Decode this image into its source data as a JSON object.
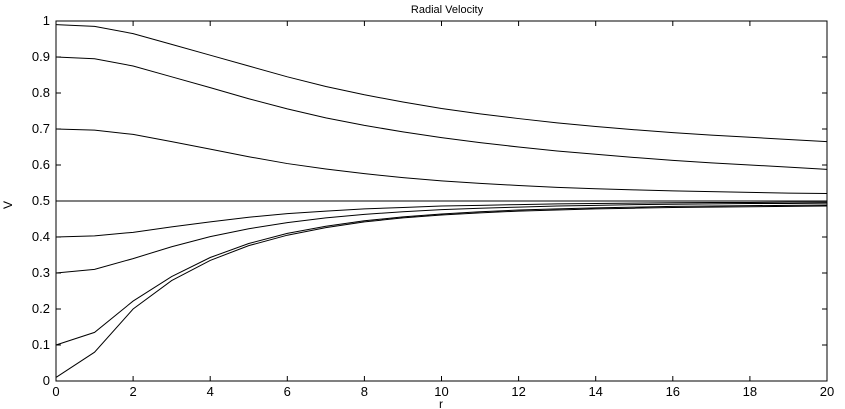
{
  "chart_data": {
    "type": "line",
    "title": "Radial Velocity",
    "xlabel": "r",
    "ylabel": "V",
    "xlim": [
      0,
      20
    ],
    "ylim": [
      0,
      1
    ],
    "xticks": [
      "0",
      "2",
      "4",
      "6",
      "8",
      "10",
      "12",
      "14",
      "16",
      "18",
      "20"
    ],
    "yticks": [
      "0",
      "0.1",
      "0.2",
      "0.3",
      "0.4",
      "0.5",
      "0.6",
      "0.7",
      "0.8",
      "0.9",
      "1"
    ],
    "grid": false,
    "line_color": "#000000",
    "x": [
      0,
      1,
      2,
      3,
      4,
      5,
      6,
      7,
      8,
      9,
      10,
      11,
      12,
      13,
      14,
      15,
      16,
      17,
      18,
      19,
      20
    ],
    "series": [
      {
        "values": [
          0.99,
          0.985,
          0.965,
          0.935,
          0.905,
          0.875,
          0.845,
          0.818,
          0.795,
          0.775,
          0.757,
          0.742,
          0.729,
          0.717,
          0.707,
          0.698,
          0.69,
          0.683,
          0.677,
          0.671,
          0.665
        ]
      },
      {
        "values": [
          0.9,
          0.895,
          0.875,
          0.845,
          0.815,
          0.784,
          0.756,
          0.731,
          0.71,
          0.692,
          0.676,
          0.662,
          0.65,
          0.639,
          0.63,
          0.621,
          0.613,
          0.606,
          0.6,
          0.594,
          0.588
        ]
      },
      {
        "values": [
          0.7,
          0.697,
          0.685,
          0.665,
          0.644,
          0.623,
          0.604,
          0.589,
          0.576,
          0.565,
          0.556,
          0.549,
          0.543,
          0.538,
          0.534,
          0.531,
          0.528,
          0.526,
          0.524,
          0.522,
          0.521
        ]
      },
      {
        "values": [
          0.5,
          0.5,
          0.5,
          0.5,
          0.5,
          0.5,
          0.5,
          0.5,
          0.5,
          0.5,
          0.5,
          0.5,
          0.5,
          0.5,
          0.5,
          0.5,
          0.5,
          0.5,
          0.5,
          0.5,
          0.5
        ]
      },
      {
        "values": [
          0.4,
          0.403,
          0.413,
          0.428,
          0.442,
          0.455,
          0.465,
          0.472,
          0.478,
          0.482,
          0.486,
          0.488,
          0.49,
          0.492,
          0.493,
          0.494,
          0.495,
          0.496,
          0.496,
          0.497,
          0.497
        ]
      },
      {
        "values": [
          0.3,
          0.31,
          0.34,
          0.373,
          0.401,
          0.423,
          0.44,
          0.453,
          0.463,
          0.47,
          0.476,
          0.48,
          0.483,
          0.486,
          0.488,
          0.49,
          0.491,
          0.492,
          0.493,
          0.493,
          0.494
        ]
      },
      {
        "values": [
          0.1,
          0.135,
          0.222,
          0.29,
          0.343,
          0.382,
          0.41,
          0.43,
          0.445,
          0.456,
          0.464,
          0.47,
          0.475,
          0.478,
          0.481,
          0.483,
          0.485,
          0.486,
          0.487,
          0.488,
          0.489
        ]
      },
      {
        "values": [
          0.01,
          0.08,
          0.2,
          0.279,
          0.335,
          0.376,
          0.405,
          0.426,
          0.442,
          0.453,
          0.461,
          0.467,
          0.472,
          0.475,
          0.478,
          0.48,
          0.482,
          0.483,
          0.484,
          0.485,
          0.486
        ]
      }
    ]
  }
}
